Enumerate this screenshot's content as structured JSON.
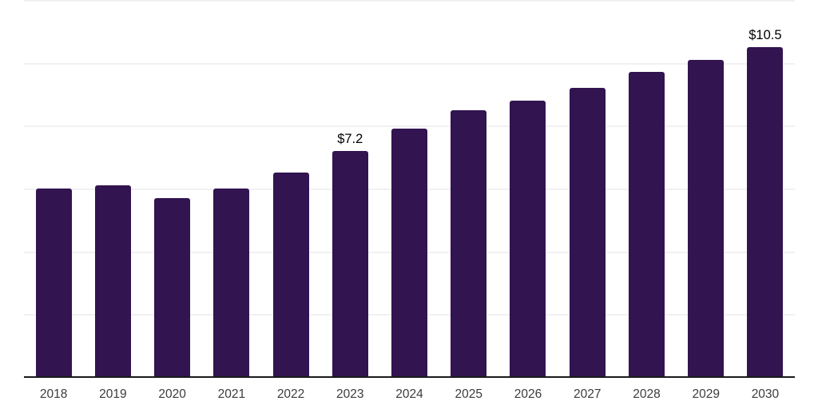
{
  "chart_data": {
    "type": "bar",
    "title": "",
    "xlabel": "",
    "ylabel": "",
    "categories": [
      "2018",
      "2019",
      "2020",
      "2021",
      "2022",
      "2023",
      "2024",
      "2025",
      "2026",
      "2027",
      "2028",
      "2029",
      "2030"
    ],
    "values": [
      6.0,
      6.1,
      5.7,
      6.0,
      6.5,
      7.2,
      7.9,
      8.5,
      8.8,
      9.2,
      9.7,
      10.1,
      10.5
    ],
    "data_labels": [
      {
        "category": "2023",
        "text": "$7.2"
      },
      {
        "category": "2030",
        "text": "$10.5"
      }
    ],
    "ylim": [
      0,
      12
    ],
    "gridline_values": [
      0,
      2,
      4,
      6,
      8,
      10,
      12
    ],
    "grid": true,
    "legend": false,
    "colors": {
      "bar": "#321450",
      "axis_line": "#1a1a1a",
      "gridline": "#f1f1f1",
      "data_label_text": "#000000",
      "tick_label_text": "#3c3c3c",
      "background": "#ffffff"
    }
  }
}
